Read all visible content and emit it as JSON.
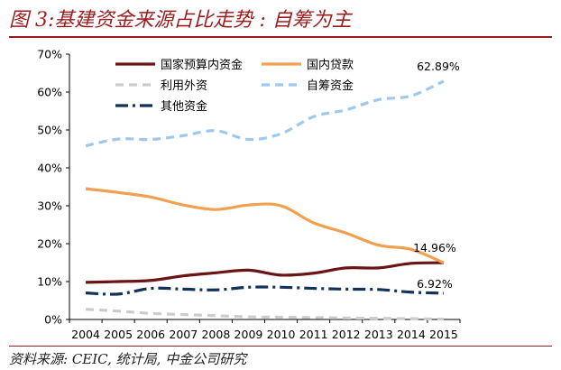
{
  "figure_title": "图 3:基建资金来源占比走势 : 自筹为主",
  "source_note": "资料来源: CEIC, 统计局, 中金公司研究",
  "chart_data": {
    "type": "line",
    "title": "",
    "xlabel": "",
    "ylabel": "",
    "x": [
      "2004",
      "2005",
      "2006",
      "2007",
      "2008",
      "2009",
      "2010",
      "2011",
      "2012",
      "2013",
      "2014",
      "2015"
    ],
    "ylim": [
      0,
      70
    ],
    "yticks": [
      "0%",
      "10%",
      "20%",
      "30%",
      "40%",
      "50%",
      "60%",
      "70%"
    ],
    "grid": false,
    "legend_position": "top",
    "series": [
      {
        "name": "国家预算内资金",
        "color": "#6b1414",
        "style": "solid",
        "values": [
          9.8,
          10.0,
          10.3,
          11.5,
          12.3,
          13.0,
          11.7,
          12.2,
          13.6,
          13.6,
          14.8,
          14.96
        ]
      },
      {
        "name": "国内贷款",
        "color": "#f0a050",
        "style": "solid",
        "values": [
          34.5,
          33.5,
          32.3,
          30.2,
          29.0,
          30.2,
          30.0,
          25.5,
          22.8,
          19.6,
          18.5,
          14.96
        ]
      },
      {
        "name": "利用外资",
        "color": "#cccccc",
        "style": "dashed",
        "values": [
          2.7,
          2.2,
          1.6,
          1.3,
          1.0,
          0.7,
          0.6,
          0.5,
          0.4,
          0.3,
          0.2,
          0.1
        ]
      },
      {
        "name": "自筹资金",
        "color": "#9ec8ee",
        "style": "dashed",
        "values": [
          45.8,
          47.6,
          47.5,
          48.5,
          49.8,
          47.5,
          49.0,
          53.5,
          55.3,
          58.0,
          59.0,
          62.89
        ]
      },
      {
        "name": "其他资金",
        "color": "#12325a",
        "style": "dashdot",
        "values": [
          7.0,
          6.7,
          8.2,
          8.0,
          7.8,
          8.5,
          8.5,
          8.2,
          8.0,
          7.9,
          7.2,
          6.92
        ]
      }
    ],
    "annotations": [
      {
        "series": 3,
        "text": "62.89%"
      },
      {
        "series": 0,
        "text": "14.96%"
      },
      {
        "series": 4,
        "text": "6.92%"
      }
    ]
  }
}
